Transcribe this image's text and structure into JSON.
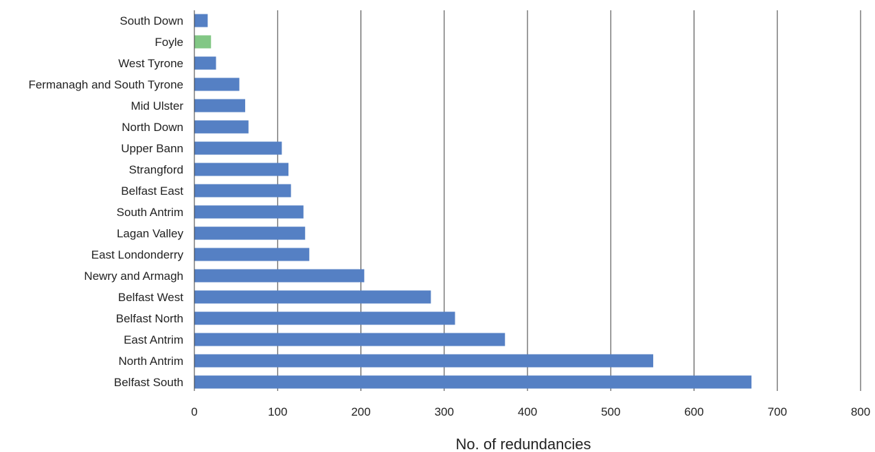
{
  "chart_data": {
    "type": "bar",
    "orientation": "horizontal",
    "title": "",
    "xlabel": "No. of redundancies",
    "ylabel": "",
    "xlim": [
      0,
      800
    ],
    "x_ticks": [
      0,
      100,
      200,
      300,
      400,
      500,
      600,
      700,
      800
    ],
    "grid": "vertical major gridlines",
    "legend": "none",
    "categories": [
      "South Down",
      "Foyle",
      "West Tyrone",
      "Fermanagh and South Tyrone",
      "Mid Ulster",
      "North Down",
      "Upper Bann",
      "Strangford",
      "Belfast East",
      "South Antrim",
      "Lagan Valley",
      "East Londonderry",
      "Newry and Armagh",
      "Belfast West",
      "Belfast North",
      "East Antrim",
      "North Antrim",
      "Belfast South"
    ],
    "values": [
      16,
      20,
      26,
      54,
      61,
      65,
      105,
      113,
      116,
      131,
      133,
      138,
      204,
      284,
      313,
      373,
      551,
      669
    ],
    "colors": {
      "default": "#5580c4",
      "highlight": "#82c785"
    },
    "highlight_category": "Foyle"
  }
}
